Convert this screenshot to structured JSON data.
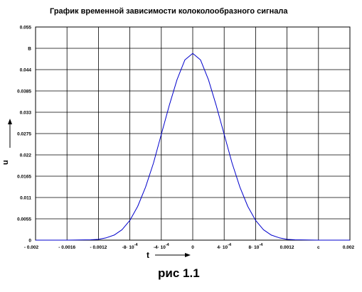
{
  "chart_data": {
    "type": "line",
    "title": "График временной зависимости колоколообразного сигнала",
    "ylabel": "u",
    "xlabel": "t",
    "x_unit": "c",
    "y_unit": "B",
    "ylim": [
      0,
      0.055
    ],
    "xlim": [
      -0.002,
      0.002
    ],
    "grid": true,
    "y_ticks": [
      {
        "value": 0,
        "label": "0"
      },
      {
        "value": 0.0055,
        "label": "0.0055"
      },
      {
        "value": 0.011,
        "label": "0.011"
      },
      {
        "value": 0.0165,
        "label": "0.0165"
      },
      {
        "value": 0.022,
        "label": "0.022"
      },
      {
        "value": 0.0275,
        "label": "0.0275"
      },
      {
        "value": 0.033,
        "label": "0.033"
      },
      {
        "value": 0.0385,
        "label": "0.0385"
      },
      {
        "value": 0.044,
        "label": "0.044"
      },
      {
        "value": 0.0495,
        "label": "B"
      },
      {
        "value": 0.055,
        "label": "0.055"
      }
    ],
    "x_ticks": [
      {
        "value": -0.002,
        "label": "- 0.002"
      },
      {
        "value": -0.0016,
        "label": "- 0.0016"
      },
      {
        "value": -0.0012,
        "label": "- 0.0012"
      },
      {
        "value": -0.0008,
        "label": "-8· 10",
        "exp": "-4"
      },
      {
        "value": -0.0004,
        "label": "-4· 10",
        "exp": "-4"
      },
      {
        "value": 0,
        "label": "0"
      },
      {
        "value": 0.0004,
        "label": "4· 10",
        "exp": "-4"
      },
      {
        "value": 0.0008,
        "label": "8· 10",
        "exp": "-4"
      },
      {
        "value": 0.0012,
        "label": "0.0012"
      },
      {
        "value": 0.0016,
        "label": "c"
      },
      {
        "value": 0.002,
        "label": "0.002"
      }
    ],
    "series": [
      {
        "color": "#0000cc",
        "x": [
          -0.002,
          -0.0016,
          -0.0013,
          -0.0012,
          -0.0011,
          -0.001,
          -0.0009,
          -0.0008,
          -0.0007,
          -0.0006,
          -0.0005,
          -0.0004,
          -0.0003,
          -0.0002,
          -0.0001,
          0,
          0.0001,
          0.0002,
          0.0003,
          0.0004,
          0.0005,
          0.0006,
          0.0007,
          0.0008,
          0.0009,
          0.001,
          0.0011,
          0.0012,
          0.0013,
          0.0016,
          0.002
        ],
        "y": [
          0,
          0,
          0.0001,
          0.0002,
          0.0006,
          0.0013,
          0.0027,
          0.0051,
          0.0087,
          0.0137,
          0.0199,
          0.0273,
          0.0347,
          0.0414,
          0.0465,
          0.0482,
          0.0465,
          0.0414,
          0.0347,
          0.0273,
          0.0199,
          0.0137,
          0.0087,
          0.0051,
          0.0027,
          0.0013,
          0.0006,
          0.0002,
          0.0001,
          0,
          0
        ]
      }
    ]
  },
  "figure_caption": "рис 1.1"
}
